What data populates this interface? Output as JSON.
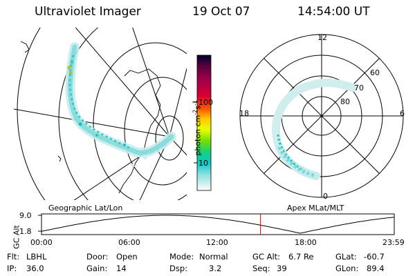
{
  "header": {
    "instrument": "Ultraviolet Imager",
    "date": "19 Oct 07",
    "time": "14:54:00 UT"
  },
  "colorbar": {
    "unit": "photon cm",
    "unit_exp1": "-2",
    "unit_s": "s",
    "unit_exp2": "-1",
    "ticks": [
      "100",
      "10"
    ],
    "colors": [
      "#000030",
      "#5a0040",
      "#a0004a",
      "#d60030",
      "#ff5a00",
      "#ffc800",
      "#e8ff00",
      "#78e000",
      "#10d080",
      "#10c8c8",
      "#8ae0e0",
      "#d0eeee",
      "#ffffff"
    ]
  },
  "polar_plot": {
    "mlt_labels": {
      "top": "12",
      "left": "18",
      "right": "6",
      "bottom": "0"
    },
    "lat_labels": [
      "60",
      "70",
      "80"
    ]
  },
  "projection_labels": {
    "left": "Geographic Lat/Lon",
    "right": "Apex MLat/MLT"
  },
  "altitude_plot": {
    "ylabel": "GC Alt",
    "yticks": [
      "9.0",
      "1.8"
    ],
    "xticks": [
      "00:00",
      "06:00",
      "12:00",
      "18:00",
      "23:59"
    ],
    "current_time_hours": 14.9,
    "line_color": "#000000",
    "marker_color": "#e00000"
  },
  "info": {
    "flt_label": "Flt:",
    "flt_value": "LBHL",
    "ip_label": "IP:",
    "ip_value": "36.0",
    "door_label": "Door:",
    "door_value": "Open",
    "gain_label": "Gain:",
    "gain_value": "14",
    "mode_label": "Mode:",
    "mode_value": "Normal",
    "dsp_label": "Dsp:",
    "dsp_value": "3.2",
    "gcalt_label": "GC Alt:",
    "gcalt_value": "6.7 Re",
    "seq_label": "Seq:",
    "seq_value": "39",
    "glat_label": "GLat:",
    "glat_value": "-60.7",
    "glon_label": "GLon:",
    "glon_value": "89.4"
  }
}
